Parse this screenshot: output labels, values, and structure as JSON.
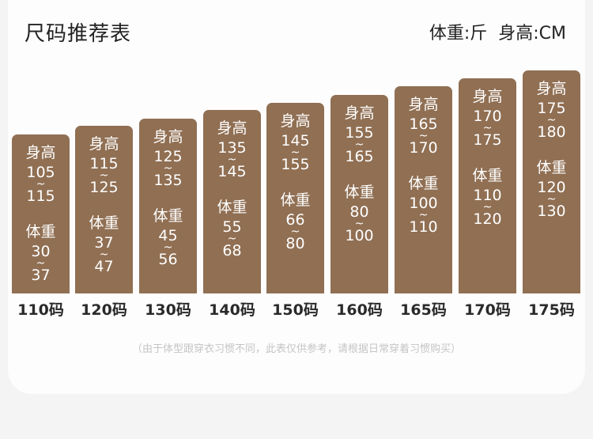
{
  "title": "尺码推荐表",
  "unit_weight": "体重:斤",
  "unit_height": "身高:CM",
  "height_label": "身高",
  "weight_label": "体重",
  "tilde": "~",
  "sizes": [
    {
      "size": "110码",
      "h_min": "105",
      "h_max": "115",
      "w_min": "30",
      "w_max": "37"
    },
    {
      "size": "120码",
      "h_min": "115",
      "h_max": "125",
      "w_min": "37",
      "w_max": "47"
    },
    {
      "size": "130码",
      "h_min": "125",
      "h_max": "135",
      "w_min": "45",
      "w_max": "56"
    },
    {
      "size": "140码",
      "h_min": "135",
      "h_max": "145",
      "w_min": "55",
      "w_max": "68"
    },
    {
      "size": "150码",
      "h_min": "145",
      "h_max": "155",
      "w_min": "66",
      "w_max": "80"
    },
    {
      "size": "160码",
      "h_min": "155",
      "h_max": "165",
      "w_min": "80",
      "w_max": "100"
    },
    {
      "size": "165码",
      "h_min": "165",
      "h_max": "170",
      "w_min": "100",
      "w_max": "110"
    },
    {
      "size": "170码",
      "h_min": "170",
      "h_max": "175",
      "w_min": "110",
      "w_max": "120"
    },
    {
      "size": "175码",
      "h_min": "175",
      "h_max": "180",
      "w_min": "120",
      "w_max": "130"
    }
  ],
  "note": "（由于体型跟穿衣习惯不同，此表仅供参考，请根据日常穿着习惯购买）"
}
